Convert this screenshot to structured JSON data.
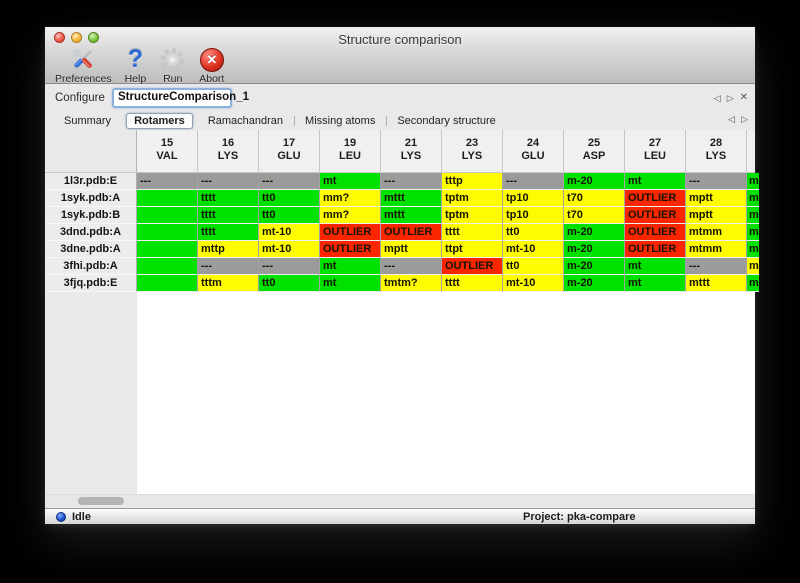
{
  "window": {
    "title": "Structure comparison"
  },
  "toolbar": {
    "items": [
      {
        "label": "Preferences",
        "icon": "preferences-tools-icon"
      },
      {
        "label": "Help",
        "icon": "help-question-icon"
      },
      {
        "label": "Run",
        "icon": "run-gear-icon"
      },
      {
        "label": "Abort",
        "icon": "abort-icon"
      }
    ]
  },
  "configure": {
    "label": "Configure",
    "value": "StructureComparison_1"
  },
  "nav_icons": {
    "prev_glyph": "◁",
    "next_glyph": "▷",
    "close_glyph": "✕"
  },
  "tabs": {
    "selected": "Rotamers",
    "items": [
      "Summary",
      "Rotamers",
      "Ramachandran",
      "Missing atoms",
      "Secondary structure"
    ]
  },
  "help_icon_glyph": "?",
  "abort_icon_glyph": "✕",
  "colors": {
    "green": "#00e100",
    "yellow": "#fffb00",
    "red": "#fb2600",
    "gray": "#9b9b9b"
  },
  "table": {
    "columns": [
      {
        "num": "15",
        "res": "VAL"
      },
      {
        "num": "16",
        "res": "LYS"
      },
      {
        "num": "17",
        "res": "GLU"
      },
      {
        "num": "19",
        "res": "LEU"
      },
      {
        "num": "21",
        "res": "LYS"
      },
      {
        "num": "23",
        "res": "LYS"
      },
      {
        "num": "24",
        "res": "GLU"
      },
      {
        "num": "25",
        "res": "ASP"
      },
      {
        "num": "27",
        "res": "LEU"
      },
      {
        "num": "28",
        "res": "LYS"
      }
    ],
    "rows": [
      {
        "label": "1l3r.pdb:E",
        "cells": [
          {
            "color": "gray",
            "text": "---"
          },
          {
            "color": "gray",
            "text": "---"
          },
          {
            "color": "gray",
            "text": "---"
          },
          {
            "color": "green",
            "text": "mt"
          },
          {
            "color": "gray",
            "text": "---"
          },
          {
            "color": "yellow",
            "text": "tttp"
          },
          {
            "color": "gray",
            "text": "---"
          },
          {
            "color": "green",
            "text": "m-20"
          },
          {
            "color": "green",
            "text": "mt"
          },
          {
            "color": "gray",
            "text": "---"
          }
        ],
        "edge": {
          "color": "green",
          "text": "m"
        }
      },
      {
        "label": "1syk.pdb:A",
        "cells": [
          {
            "color": "green",
            "text": ""
          },
          {
            "color": "green",
            "text": "tttt"
          },
          {
            "color": "green",
            "text": "tt0"
          },
          {
            "color": "yellow",
            "text": "mm?"
          },
          {
            "color": "green",
            "text": "mttt"
          },
          {
            "color": "yellow",
            "text": "tptm"
          },
          {
            "color": "yellow",
            "text": "tp10"
          },
          {
            "color": "yellow",
            "text": "t70"
          },
          {
            "color": "red",
            "text": "OUTLIER"
          },
          {
            "color": "yellow",
            "text": "mptt"
          }
        ],
        "edge": {
          "color": "green",
          "text": "m"
        }
      },
      {
        "label": "1syk.pdb:B",
        "cells": [
          {
            "color": "green",
            "text": ""
          },
          {
            "color": "green",
            "text": "tttt"
          },
          {
            "color": "green",
            "text": "tt0"
          },
          {
            "color": "yellow",
            "text": "mm?"
          },
          {
            "color": "green",
            "text": "mttt"
          },
          {
            "color": "yellow",
            "text": "tptm"
          },
          {
            "color": "yellow",
            "text": "tp10"
          },
          {
            "color": "yellow",
            "text": "t70"
          },
          {
            "color": "red",
            "text": "OUTLIER"
          },
          {
            "color": "yellow",
            "text": "mptt"
          }
        ],
        "edge": {
          "color": "green",
          "text": "m"
        }
      },
      {
        "label": "3dnd.pdb:A",
        "cells": [
          {
            "color": "green",
            "text": ""
          },
          {
            "color": "green",
            "text": "tttt"
          },
          {
            "color": "yellow",
            "text": "mt-10"
          },
          {
            "color": "red",
            "text": "OUTLIER"
          },
          {
            "color": "red",
            "text": "OUTLIER"
          },
          {
            "color": "yellow",
            "text": "tttt"
          },
          {
            "color": "yellow",
            "text": "tt0"
          },
          {
            "color": "green",
            "text": "m-20"
          },
          {
            "color": "red",
            "text": "OUTLIER"
          },
          {
            "color": "yellow",
            "text": "mtmm"
          }
        ],
        "edge": {
          "color": "green",
          "text": "m"
        }
      },
      {
        "label": "3dne.pdb:A",
        "cells": [
          {
            "color": "green",
            "text": ""
          },
          {
            "color": "yellow",
            "text": "mttp"
          },
          {
            "color": "yellow",
            "text": "mt-10"
          },
          {
            "color": "red",
            "text": "OUTLIER"
          },
          {
            "color": "yellow",
            "text": "mptt"
          },
          {
            "color": "yellow",
            "text": "ttpt"
          },
          {
            "color": "yellow",
            "text": "mt-10"
          },
          {
            "color": "green",
            "text": "m-20"
          },
          {
            "color": "red",
            "text": "OUTLIER"
          },
          {
            "color": "yellow",
            "text": "mtmm"
          }
        ],
        "edge": {
          "color": "green",
          "text": "m"
        }
      },
      {
        "label": "3fhi.pdb:A",
        "cells": [
          {
            "color": "green",
            "text": ""
          },
          {
            "color": "gray",
            "text": "---"
          },
          {
            "color": "gray",
            "text": "---"
          },
          {
            "color": "green",
            "text": "mt"
          },
          {
            "color": "gray",
            "text": "---"
          },
          {
            "color": "red",
            "text": "OUTLIER"
          },
          {
            "color": "yellow",
            "text": "tt0"
          },
          {
            "color": "green",
            "text": "m-20"
          },
          {
            "color": "green",
            "text": "mt"
          },
          {
            "color": "gray",
            "text": "---"
          }
        ],
        "edge": {
          "color": "yellow",
          "text": "m"
        }
      },
      {
        "label": "3fjq.pdb:E",
        "cells": [
          {
            "color": "green",
            "text": ""
          },
          {
            "color": "yellow",
            "text": "tttm"
          },
          {
            "color": "green",
            "text": "tt0"
          },
          {
            "color": "green",
            "text": "mt"
          },
          {
            "color": "yellow",
            "text": "tmtm?"
          },
          {
            "color": "yellow",
            "text": "tttt"
          },
          {
            "color": "yellow",
            "text": "mt-10"
          },
          {
            "color": "green",
            "text": "m-20"
          },
          {
            "color": "green",
            "text": "mt"
          },
          {
            "color": "yellow",
            "text": "mttt"
          }
        ],
        "edge": {
          "color": "green",
          "text": "m"
        }
      }
    ]
  },
  "statusbar": {
    "status": "Idle",
    "project": "Project: pka-compare"
  }
}
